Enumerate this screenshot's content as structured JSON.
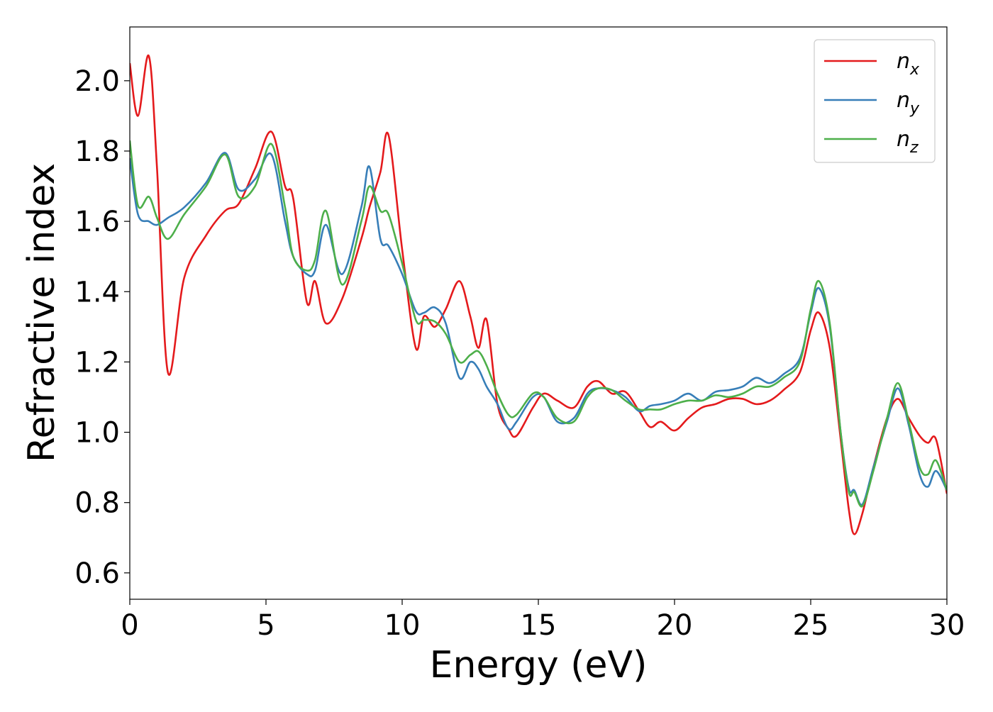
{
  "chart_data": {
    "type": "line",
    "x_label": "Energy (eV)",
    "y_label": "Refractive index",
    "xlim": [
      0,
      30
    ],
    "ylim": [
      0.525,
      2.153
    ],
    "xticks": [
      0,
      5,
      10,
      15,
      20,
      25,
      30
    ],
    "yticks": [
      0.6,
      0.8,
      {
        "value": 1,
        "label": "1.0"
      },
      1.2,
      1.4,
      1.6,
      1.8,
      {
        "value": 2,
        "label": "2.0"
      }
    ],
    "legend": "upper right",
    "x": [
      0,
      0.3,
      0.7,
      1.0,
      1.4,
      2.0,
      2.8,
      3.5,
      4.0,
      4.6,
      5.2,
      5.7,
      6.0,
      6.5,
      6.8,
      7.2,
      7.8,
      8.5,
      8.8,
      9.2,
      9.5,
      10.0,
      10.5,
      10.8,
      11.2,
      11.6,
      12.1,
      12.5,
      12.8,
      13.1,
      13.5,
      13.9,
      14.2,
      14.8,
      15.2,
      15.7,
      16.3,
      16.8,
      17.2,
      17.7,
      18.2,
      18.7,
      19.1,
      19.5,
      20.0,
      20.5,
      21.0,
      21.5,
      22.0,
      22.5,
      23.0,
      23.5,
      24.0,
      24.6,
      25.0,
      25.3,
      25.7,
      26.1,
      26.4,
      26.6,
      26.9,
      27.3,
      27.8,
      28.2,
      28.6,
      29.0,
      29.3,
      29.6,
      30.0
    ],
    "series": [
      {
        "name": "nx",
        "color": "#e41a1c",
        "values": [
          2.05,
          1.9,
          2.07,
          1.75,
          1.17,
          1.44,
          1.56,
          1.63,
          1.65,
          1.75,
          1.855,
          1.7,
          1.665,
          1.37,
          1.43,
          1.31,
          1.38,
          1.55,
          1.64,
          1.74,
          1.845,
          1.52,
          1.24,
          1.33,
          1.3,
          1.35,
          1.43,
          1.33,
          1.24,
          1.32,
          1.08,
          1.01,
          0.99,
          1.07,
          1.11,
          1.09,
          1.07,
          1.13,
          1.145,
          1.11,
          1.115,
          1.06,
          1.015,
          1.03,
          1.005,
          1.04,
          1.07,
          1.08,
          1.095,
          1.095,
          1.08,
          1.09,
          1.12,
          1.17,
          1.29,
          1.34,
          1.24,
          0.98,
          0.78,
          0.71,
          0.77,
          0.9,
          1.04,
          1.095,
          1.04,
          0.99,
          0.97,
          0.98,
          0.825
        ]
      },
      {
        "name": "ny",
        "color": "#377eb8",
        "values": [
          1.78,
          1.62,
          1.6,
          1.59,
          1.61,
          1.64,
          1.71,
          1.795,
          1.69,
          1.72,
          1.79,
          1.6,
          1.5,
          1.45,
          1.46,
          1.59,
          1.45,
          1.64,
          1.755,
          1.55,
          1.53,
          1.45,
          1.345,
          1.34,
          1.355,
          1.31,
          1.155,
          1.2,
          1.18,
          1.13,
          1.08,
          1.01,
          1.03,
          1.1,
          1.1,
          1.03,
          1.04,
          1.11,
          1.125,
          1.12,
          1.1,
          1.06,
          1.075,
          1.08,
          1.09,
          1.11,
          1.09,
          1.115,
          1.12,
          1.13,
          1.155,
          1.14,
          1.165,
          1.21,
          1.34,
          1.41,
          1.3,
          1.0,
          0.84,
          0.835,
          0.795,
          0.9,
          1.03,
          1.125,
          1.02,
          0.88,
          0.845,
          0.89,
          0.835
        ]
      },
      {
        "name": "nz",
        "color": "#4daf4a",
        "values": [
          1.83,
          1.645,
          1.67,
          1.61,
          1.55,
          1.62,
          1.7,
          1.79,
          1.67,
          1.7,
          1.82,
          1.64,
          1.5,
          1.46,
          1.49,
          1.63,
          1.42,
          1.6,
          1.7,
          1.63,
          1.62,
          1.48,
          1.32,
          1.32,
          1.315,
          1.28,
          1.2,
          1.22,
          1.23,
          1.19,
          1.11,
          1.05,
          1.05,
          1.11,
          1.1,
          1.04,
          1.03,
          1.1,
          1.125,
          1.12,
          1.09,
          1.065,
          1.065,
          1.065,
          1.08,
          1.09,
          1.09,
          1.105,
          1.1,
          1.11,
          1.13,
          1.13,
          1.155,
          1.2,
          1.35,
          1.43,
          1.31,
          1.0,
          0.83,
          0.83,
          0.79,
          0.89,
          1.04,
          1.14,
          1.03,
          0.9,
          0.88,
          0.92,
          0.835
        ]
      }
    ]
  }
}
